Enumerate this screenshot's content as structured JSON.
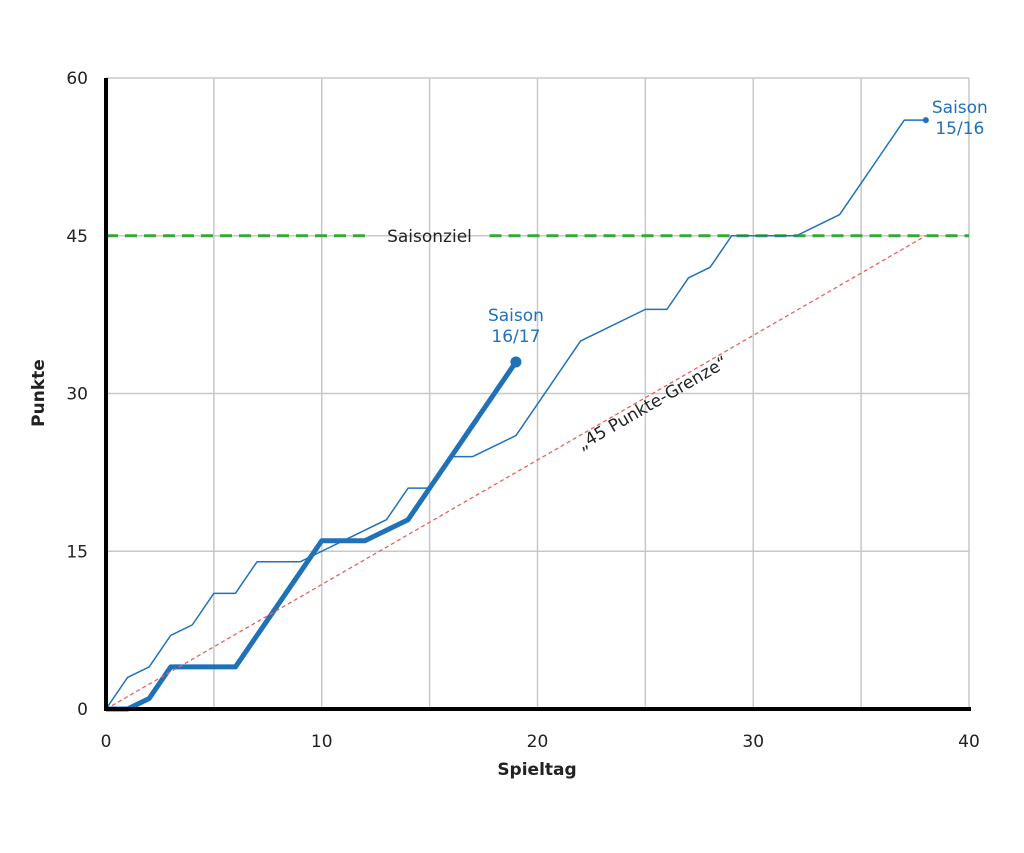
{
  "chart_data": {
    "type": "line",
    "xlabel": "Spieltag",
    "ylabel": "Punkte",
    "xlim": [
      0,
      40
    ],
    "xticks": [
      0,
      10,
      20,
      30,
      40
    ],
    "xgridlines": [
      0,
      5,
      10,
      15,
      20,
      25,
      30,
      35,
      40
    ],
    "ylim": [
      0,
      60
    ],
    "yticks": [
      0,
      15,
      30,
      45,
      60
    ],
    "grid": true,
    "hlines": [
      {
        "value": 45,
        "label": "Saisonziel",
        "color": "#3aa63a"
      }
    ],
    "series": [
      {
        "name": "Saison 15/16",
        "color": "#1f72b8",
        "width": 1.5,
        "dash": "none",
        "end_marker": true,
        "label_position": "right",
        "x": [
          0,
          1,
          2,
          3,
          4,
          5,
          6,
          7,
          8,
          9,
          10,
          11,
          12,
          13,
          14,
          15,
          16,
          17,
          18,
          19,
          20,
          21,
          22,
          23,
          24,
          25,
          26,
          27,
          28,
          29,
          30,
          31,
          32,
          33,
          34,
          35,
          36,
          37,
          38
        ],
        "values": [
          0,
          3,
          4,
          7,
          8,
          11,
          11,
          14,
          14,
          14,
          15,
          16,
          17,
          18,
          21,
          21,
          24,
          24,
          25,
          26,
          29,
          32,
          35,
          36,
          37,
          38,
          38,
          41,
          42,
          45,
          45,
          45,
          45,
          46,
          47,
          50,
          53,
          56,
          56
        ]
      },
      {
        "name": "Saison 16/17",
        "color": "#1f72b8",
        "width": 5,
        "dash": "none",
        "end_marker": true,
        "label_position": "top",
        "x": [
          0,
          1,
          2,
          3,
          4,
          5,
          6,
          7,
          8,
          9,
          10,
          11,
          12,
          13,
          14,
          15,
          16,
          17,
          18,
          19
        ],
        "values": [
          0,
          0,
          1,
          4,
          4,
          4,
          4,
          7,
          10,
          13,
          16,
          16,
          16,
          17,
          18,
          21,
          24,
          27,
          30,
          33
        ]
      },
      {
        "name": "„45 Punkte-Grenze“",
        "color": "#e8625f",
        "width": 1.3,
        "dash": "4 3",
        "end_marker": false,
        "label_position": "along",
        "x": [
          0,
          38
        ],
        "values": [
          0,
          45
        ]
      }
    ]
  }
}
